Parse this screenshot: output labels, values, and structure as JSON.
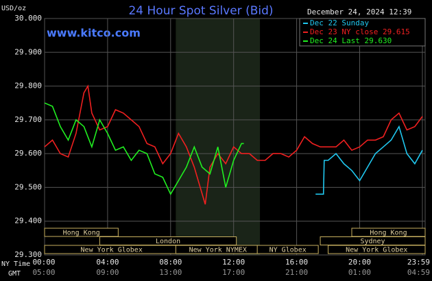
{
  "chart_data": {
    "type": "line",
    "title": "24 Hour Spot Silver (Bid)",
    "watermark": "www.kitco.com",
    "timestamp": "December 24, 2024 12:39",
    "y_label": "USD/oz",
    "x_label": "NY Time",
    "x2_label": "GMT",
    "xlim": [
      0,
      23.983
    ],
    "xticks": [
      {
        "value": 0,
        "label": "00:00"
      },
      {
        "value": 4,
        "label": "04:00"
      },
      {
        "value": 8,
        "label": "08:00"
      },
      {
        "value": 12,
        "label": "12:00"
      },
      {
        "value": 16,
        "label": "16:00"
      },
      {
        "value": 20,
        "label": "20:00"
      },
      {
        "value": 23.983,
        "label": "23:59"
      }
    ],
    "x2ticks": [
      "05:00",
      "09:00",
      "13:00",
      "17:00",
      "21:00",
      "01:00",
      "04:59"
    ],
    "ylim": [
      29.3,
      30.0
    ],
    "yticks": [
      {
        "value": 29.3,
        "label": "29.300"
      },
      {
        "value": 29.4,
        "label": "29.400"
      },
      {
        "value": 29.5,
        "label": "29.500"
      },
      {
        "value": 29.6,
        "label": "29.600"
      },
      {
        "value": 29.7,
        "label": "29.700"
      },
      {
        "value": 29.8,
        "label": "29.800"
      },
      {
        "value": 29.9,
        "label": "29.900"
      },
      {
        "value": 30.0,
        "label": "30.000"
      }
    ],
    "grid": true,
    "highlight": [
      8.33,
      13.67
    ],
    "series": [
      {
        "name": "Dec 22 Sunday",
        "color": "#20c8f0",
        "x": [
          17.2,
          17.7,
          17.75,
          18,
          18.5,
          19,
          19.5,
          20,
          20.5,
          21,
          21.5,
          22,
          22.5,
          23,
          23.5,
          23.983
        ],
        "values": [
          29.48,
          29.48,
          29.58,
          29.58,
          29.6,
          29.57,
          29.55,
          29.52,
          29.56,
          29.6,
          29.62,
          29.64,
          29.68,
          29.6,
          29.57,
          29.61
        ]
      },
      {
        "name": "Dec 23 NY close 29.615",
        "color": "#f02020",
        "x": [
          0,
          0.5,
          1,
          1.5,
          2,
          2.5,
          2.75,
          3,
          3.5,
          4,
          4.5,
          5,
          5.5,
          6,
          6.5,
          7,
          7.5,
          8,
          8.5,
          9,
          9.5,
          10.2,
          10.5,
          11,
          11.5,
          12,
          12.5,
          13,
          13.5,
          14,
          14.5,
          15,
          15.5,
          16,
          16.5,
          17,
          17.5,
          18,
          18.5,
          19,
          19.5,
          20,
          20.5,
          21,
          21.5,
          22,
          22.5,
          23,
          23.5,
          23.983
        ],
        "values": [
          29.62,
          29.64,
          29.6,
          29.59,
          29.66,
          29.78,
          29.8,
          29.72,
          29.67,
          29.68,
          29.73,
          29.72,
          29.7,
          29.68,
          29.63,
          29.62,
          29.57,
          29.6,
          29.66,
          29.62,
          29.56,
          29.45,
          29.56,
          29.6,
          29.57,
          29.62,
          29.6,
          29.6,
          29.58,
          29.58,
          29.6,
          29.6,
          29.59,
          29.61,
          29.65,
          29.63,
          29.62,
          29.62,
          29.62,
          29.64,
          29.61,
          29.62,
          29.64,
          29.64,
          29.65,
          29.7,
          29.72,
          29.67,
          29.68,
          29.71
        ]
      },
      {
        "name": "Dec 24 Last 29.630",
        "color": "#20f020",
        "x": [
          0,
          0.5,
          1,
          1.5,
          2,
          2.5,
          3,
          3.5,
          4,
          4.5,
          5,
          5.5,
          6,
          6.5,
          7,
          7.5,
          8,
          8.5,
          9,
          9.5,
          10,
          10.5,
          11,
          11.5,
          12,
          12.5,
          12.65
        ],
        "values": [
          29.75,
          29.74,
          29.68,
          29.64,
          29.7,
          29.68,
          29.62,
          29.7,
          29.66,
          29.61,
          29.62,
          29.58,
          29.61,
          29.6,
          29.54,
          29.53,
          29.48,
          29.52,
          29.56,
          29.62,
          29.56,
          29.54,
          29.62,
          29.5,
          29.58,
          29.63,
          29.63
        ]
      }
    ],
    "sessions": [
      [
        {
          "label": "Hong Kong",
          "start": 0,
          "end": 4.5
        },
        {
          "label": "Hong Kong",
          "start": 19.5,
          "end": 23.983
        }
      ],
      [
        {
          "label": "London",
          "start": 3.5,
          "end": 12
        },
        {
          "label": "Sydney",
          "start": 17.5,
          "end": 23.983
        }
      ],
      [
        {
          "label": "New York Globex",
          "start": 0,
          "end": 8.33
        },
        {
          "label": "New York NYMEX",
          "start": 8.33,
          "end": 13.5
        },
        {
          "label": "NY Globex",
          "start": 13.5,
          "end": 17.2
        },
        {
          "label": "New York Globex",
          "start": 18,
          "end": 23.983
        }
      ]
    ]
  }
}
